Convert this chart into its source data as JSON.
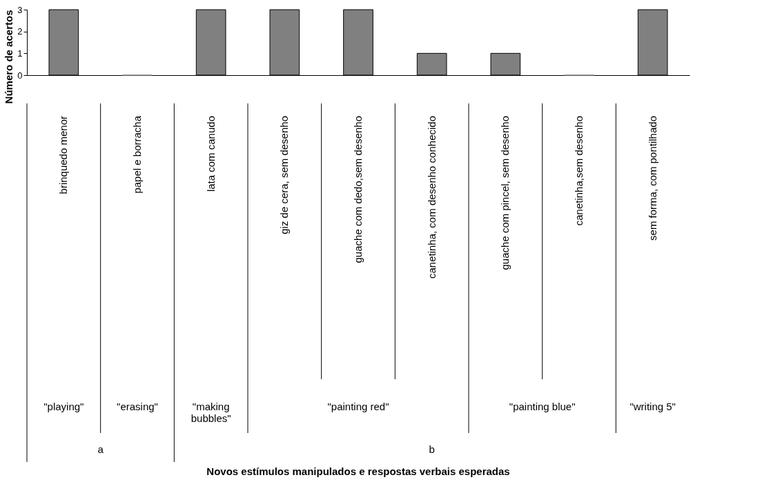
{
  "chart_data": {
    "type": "bar",
    "ylabel": "Número de acertos",
    "categories": [
      "brinquedo menor",
      "papel e borracha",
      "lata com canudo",
      "giz de cera, sem desenho",
      "guache com dedo,sem desenho",
      "canetinha, com desenho conhecido",
      "guache com pincel, sem desenho",
      "canetinha,sem desenho",
      "sem forma, com pontilhado"
    ],
    "values": [
      3,
      0,
      3,
      3,
      3,
      1,
      1,
      0,
      3
    ],
    "color": "#808080",
    "ylim": [
      0,
      3
    ],
    "yticks": [
      0,
      1,
      2,
      3
    ],
    "grid": false,
    "annotations": [
      "\"playing\"",
      "\"erasing\"",
      "\"making bubbles\"",
      "\"painting red\"",
      "\"painting blue\"",
      "\"writing 5\"",
      "a",
      "b",
      "Novos estímulos manipulados e respostas verbais  esperadas"
    ]
  }
}
